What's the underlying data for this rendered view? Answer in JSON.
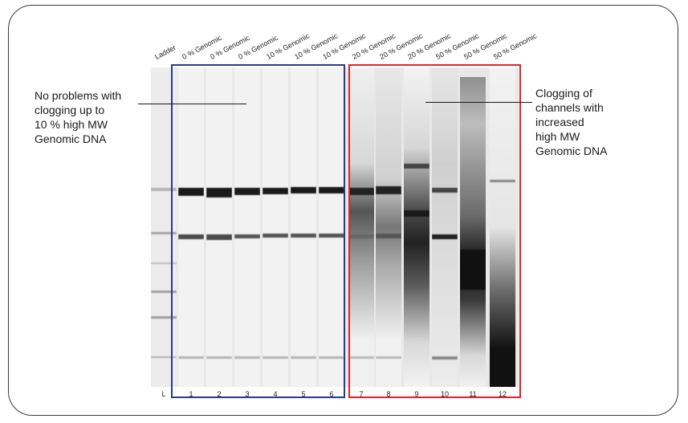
{
  "lane_headers": [
    "Ladder",
    "0 % Genomic",
    "0 % Genomic",
    "0 % Genomic",
    "10 % Genomic",
    "10 % Genomic",
    "10 % Genomic",
    "20 % Genomic",
    "20 % Genomic",
    "20 % Genomic",
    "50 % Genomic",
    "50 % Genomic",
    "50 % Genomic"
  ],
  "lane_numbers": [
    "L",
    "1",
    "2",
    "3",
    "4",
    "5",
    "6",
    "7",
    "8",
    "9",
    "10",
    "11",
    "12"
  ],
  "annotations": {
    "left": [
      "No problems with",
      "clogging up to",
      "10 % high MW",
      "Genomic DNA"
    ],
    "right": [
      "Clogging of",
      "channels with",
      "increased",
      "high MW",
      "Genomic DNA"
    ]
  },
  "colors": {
    "group_low_box": "#2a3a8c",
    "group_high_box": "#e0232b"
  },
  "icons": []
}
